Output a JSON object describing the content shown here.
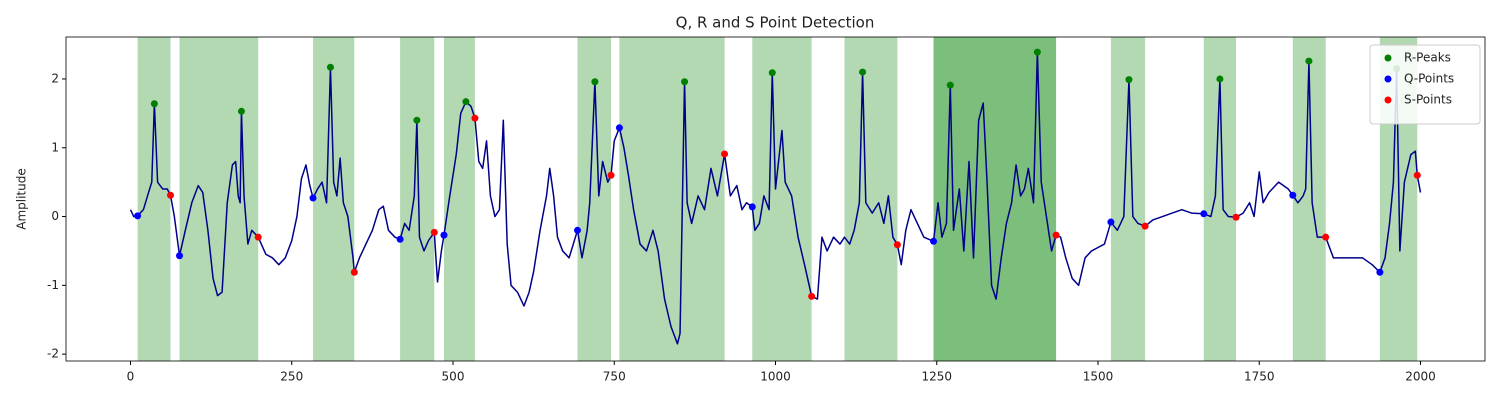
{
  "chart_data": {
    "type": "line",
    "title": "Q, R and S Point Detection",
    "ylabel": "Amplitude",
    "xlim": [
      -100,
      2100
    ],
    "ylim": [
      -2.1,
      2.61
    ],
    "xticks": [
      0,
      250,
      500,
      750,
      1000,
      1250,
      1500,
      1750,
      2000
    ],
    "yticks": [
      -2,
      -1,
      0,
      1,
      2
    ],
    "color": "#00008b",
    "legend": "upper right",
    "span_color": "#008000",
    "span_alpha": 0.3,
    "spans": [
      {
        "start": 11,
        "end": 62
      },
      {
        "start": 76,
        "end": 198
      },
      {
        "start": 283,
        "end": 347
      },
      {
        "start": 418,
        "end": 471
      },
      {
        "start": 486,
        "end": 534
      },
      {
        "start": 693,
        "end": 745
      },
      {
        "start": 758,
        "end": 921
      },
      {
        "start": 964,
        "end": 1056
      },
      {
        "start": 1107,
        "end": 1189
      },
      {
        "start": 1245,
        "end": 1435
      },
      {
        "start": 1245,
        "end": 1435
      },
      {
        "start": 1520,
        "end": 1573
      },
      {
        "start": 1664,
        "end": 1714
      },
      {
        "start": 1802,
        "end": 1853
      },
      {
        "start": 1937,
        "end": 1995
      }
    ],
    "x": [
      0,
      5,
      11,
      20,
      28,
      33,
      37,
      42,
      50,
      57,
      62,
      68,
      76,
      85,
      95,
      105,
      112,
      120,
      128,
      135,
      142,
      150,
      158,
      163,
      167,
      170,
      172,
      176,
      182,
      188,
      198,
      210,
      220,
      230,
      240,
      250,
      258,
      265,
      272,
      278,
      283,
      290,
      297,
      304,
      310,
      315,
      320,
      325,
      330,
      337,
      345,
      347,
      355,
      365,
      375,
      385,
      392,
      400,
      410,
      418,
      425,
      432,
      440,
      444,
      448,
      455,
      462,
      471,
      476,
      482,
      486,
      495,
      505,
      512,
      520,
      528,
      534,
      540,
      546,
      552,
      558,
      565,
      572,
      578,
      584,
      590,
      600,
      610,
      618,
      625,
      635,
      645,
      650,
      656,
      662,
      670,
      680,
      693,
      700,
      708,
      712,
      720,
      726,
      732,
      740,
      745,
      750,
      758,
      765,
      772,
      780,
      790,
      800,
      810,
      818,
      828,
      838,
      848,
      852,
      859,
      863,
      870,
      880,
      890,
      900,
      910,
      921,
      930,
      940,
      948,
      955,
      964,
      968,
      975,
      982,
      990,
      995,
      1000,
      1010,
      1015,
      1025,
      1035,
      1045,
      1056,
      1065,
      1072,
      1080,
      1090,
      1100,
      1107,
      1115,
      1122,
      1130,
      1135,
      1140,
      1150,
      1160,
      1168,
      1175,
      1182,
      1189,
      1195,
      1202,
      1210,
      1220,
      1230,
      1245,
      1252,
      1258,
      1265,
      1271,
      1276,
      1285,
      1292,
      1300,
      1307,
      1315,
      1322,
      1328,
      1335,
      1342,
      1350,
      1358,
      1366,
      1373,
      1380,
      1386,
      1392,
      1400,
      1406,
      1412,
      1420,
      1428,
      1435,
      1442,
      1450,
      1460,
      1470,
      1480,
      1490,
      1500,
      1510,
      1520,
      1530,
      1540,
      1548,
      1554,
      1562,
      1573,
      1585,
      1600,
      1615,
      1630,
      1645,
      1664,
      1675,
      1682,
      1689,
      1694,
      1702,
      1714,
      1725,
      1735,
      1742,
      1750,
      1756,
      1765,
      1780,
      1795,
      1802,
      1810,
      1818,
      1822,
      1827,
      1832,
      1840,
      1853,
      1865,
      1880,
      1895,
      1910,
      1925,
      1937,
      1945,
      1952,
      1958,
      1963,
      1968,
      1975,
      1985,
      1992,
      1995,
      2000
    ],
    "values": [
      0.1,
      0.0,
      0.01,
      0.1,
      0.35,
      0.5,
      1.64,
      0.5,
      0.4,
      0.4,
      0.31,
      0.0,
      -0.57,
      -0.2,
      0.2,
      0.45,
      0.35,
      -0.2,
      -0.9,
      -1.15,
      -1.1,
      0.2,
      0.75,
      0.8,
      0.3,
      0.2,
      1.53,
      0.3,
      -0.4,
      -0.2,
      -0.3,
      -0.55,
      -0.6,
      -0.7,
      -0.6,
      -0.35,
      0.0,
      0.55,
      0.75,
      0.45,
      0.27,
      0.4,
      0.5,
      0.2,
      2.17,
      0.5,
      0.3,
      0.85,
      0.2,
      0.0,
      -0.6,
      -0.81,
      -0.6,
      -0.4,
      -0.2,
      0.1,
      0.15,
      -0.2,
      -0.3,
      -0.33,
      -0.1,
      -0.2,
      0.3,
      1.4,
      -0.3,
      -0.5,
      -0.35,
      -0.23,
      -0.95,
      -0.5,
      -0.27,
      0.3,
      0.9,
      1.5,
      1.67,
      1.6,
      1.43,
      0.8,
      0.7,
      1.1,
      0.3,
      0.0,
      0.1,
      1.4,
      -0.4,
      -1.0,
      -1.1,
      -1.3,
      -1.1,
      -0.8,
      -0.2,
      0.3,
      0.7,
      0.3,
      -0.3,
      -0.5,
      -0.6,
      -0.2,
      -0.6,
      -0.2,
      0.2,
      1.96,
      0.3,
      0.8,
      0.5,
      0.6,
      1.1,
      1.29,
      1.0,
      0.6,
      0.1,
      -0.4,
      -0.5,
      -0.2,
      -0.5,
      -1.2,
      -1.6,
      -1.85,
      -1.7,
      1.96,
      0.2,
      -0.1,
      0.3,
      0.1,
      0.7,
      0.3,
      0.91,
      0.3,
      0.45,
      0.1,
      0.2,
      0.14,
      -0.2,
      -0.1,
      0.3,
      0.1,
      2.09,
      0.4,
      1.25,
      0.5,
      0.3,
      -0.3,
      -0.7,
      -1.16,
      -1.2,
      -0.3,
      -0.5,
      -0.3,
      -0.4,
      -0.3,
      -0.4,
      -0.2,
      0.2,
      2.1,
      0.2,
      0.05,
      0.2,
      -0.1,
      0.3,
      -0.3,
      -0.41,
      -0.7,
      -0.2,
      0.1,
      -0.1,
      -0.3,
      -0.36,
      0.2,
      -0.3,
      -0.1,
      1.91,
      -0.2,
      0.4,
      -0.5,
      0.8,
      -0.6,
      1.4,
      1.65,
      0.5,
      -1.0,
      -1.2,
      -0.6,
      -0.1,
      0.2,
      0.75,
      0.3,
      0.4,
      0.7,
      0.2,
      2.39,
      0.5,
      0.0,
      -0.5,
      -0.27,
      -0.3,
      -0.6,
      -0.9,
      -1.0,
      -0.6,
      -0.5,
      -0.45,
      -0.4,
      -0.08,
      -0.2,
      0.0,
      1.99,
      0.0,
      -0.1,
      -0.14,
      -0.05,
      0.0,
      0.05,
      0.1,
      0.05,
      0.04,
      0.0,
      0.3,
      2.0,
      0.1,
      0.0,
      -0.01,
      0.05,
      0.2,
      0.0,
      0.65,
      0.2,
      0.35,
      0.5,
      0.4,
      0.31,
      0.2,
      0.3,
      0.4,
      2.26,
      0.2,
      -0.3,
      -0.3,
      -0.6,
      -0.6,
      -0.6,
      -0.6,
      -0.7,
      -0.81,
      -0.6,
      -0.1,
      0.5,
      2.15,
      -0.5,
      0.5,
      0.9,
      0.95,
      0.6,
      0.35
    ],
    "points": [
      {
        "name": "R-Peaks",
        "color": "#008000",
        "x": [
          37,
          172,
          310,
          444,
          520,
          720,
          859,
          995,
          1135,
          1271,
          1406,
          1548,
          1689,
          1827,
          1963
        ],
        "values": [
          1.64,
          1.53,
          2.17,
          1.4,
          1.67,
          1.96,
          1.96,
          2.09,
          2.1,
          1.91,
          2.39,
          1.99,
          2.0,
          2.26,
          2.15
        ]
      },
      {
        "name": "Q-Points",
        "color": "#0000ff",
        "x": [
          11,
          76,
          283,
          418,
          486,
          693,
          758,
          964,
          1245,
          1520,
          1664,
          1802,
          1937
        ],
        "values": [
          0.01,
          -0.57,
          0.27,
          -0.33,
          -0.27,
          -0.2,
          1.29,
          0.14,
          -0.36,
          -0.08,
          0.04,
          0.31,
          -0.81
        ]
      },
      {
        "name": "S-Points",
        "color": "#ff0000",
        "x": [
          62,
          198,
          347,
          471,
          534,
          745,
          921,
          1056,
          1189,
          1435,
          1573,
          1714,
          1853,
          1995
        ],
        "values": [
          0.31,
          -0.3,
          -0.81,
          -0.23,
          1.43,
          0.6,
          0.91,
          -1.16,
          -0.41,
          -0.27,
          -0.14,
          -0.01,
          -0.3,
          0.6
        ]
      }
    ]
  }
}
